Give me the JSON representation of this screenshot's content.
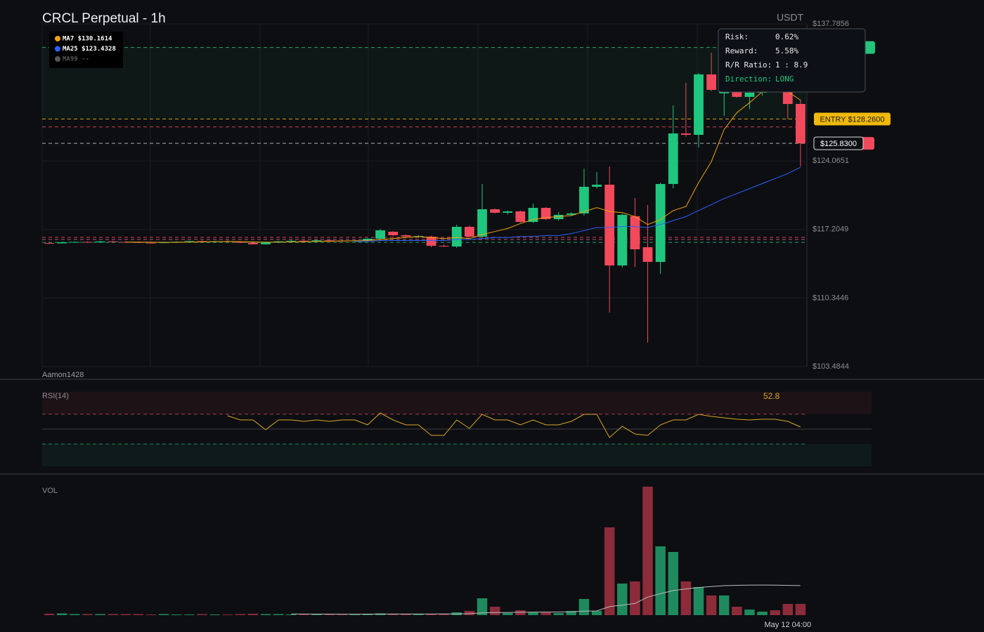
{
  "title": "CRCL Perpetual - 1h",
  "currency": "USDT",
  "watermark": "Aamon1428",
  "legend": [
    {
      "label": "MA7 $130.1614",
      "color": "#f0a30a"
    },
    {
      "label": "MA25 $123.4328",
      "color": "#2962ff"
    },
    {
      "label": "MA99 --",
      "color": "#555555"
    }
  ],
  "risk_panel": [
    {
      "label": "Risk:",
      "value": "0.62%"
    },
    {
      "label": "Reward:",
      "value": "5.58%"
    },
    {
      "label": "R/R Ratio:",
      "value": "1 : 8.9"
    },
    {
      "label": "Direction:",
      "value": "LONG"
    }
  ],
  "chart_data": [
    {
      "type": "candlestick",
      "up_color": "#1fc77e",
      "down_color": "#f2495c",
      "ylim": [
        103.4844,
        137.7856
      ],
      "yticks": [
        {
          "value": 103.4844,
          "label": "$103.4844"
        },
        {
          "value": 110.3446,
          "label": "$110.3446"
        },
        {
          "value": 117.2049,
          "label": "$117.2049"
        },
        {
          "value": 124.0651,
          "label": "$124.0651"
        },
        {
          "value": 137.7856,
          "label": "$137.7856"
        }
      ],
      "ohlc": [
        [
          115.85,
          115.95,
          115.78,
          115.8
        ],
        [
          115.82,
          115.98,
          115.8,
          115.93
        ],
        [
          115.93,
          116.0,
          115.88,
          115.96
        ],
        [
          115.96,
          116.02,
          115.9,
          115.92
        ],
        [
          115.92,
          116.05,
          115.89,
          116.01
        ],
        [
          116.01,
          116.06,
          115.93,
          115.96
        ],
        [
          115.96,
          116.02,
          115.9,
          115.94
        ],
        [
          115.94,
          115.99,
          115.86,
          115.88
        ],
        [
          115.88,
          115.95,
          115.82,
          115.85
        ],
        [
          115.85,
          115.96,
          115.83,
          115.92
        ],
        [
          115.92,
          116.01,
          115.89,
          115.98
        ],
        [
          115.98,
          116.08,
          115.95,
          116.04
        ],
        [
          116.04,
          116.1,
          115.98,
          116.0
        ],
        [
          116.0,
          116.06,
          115.94,
          116.02
        ],
        [
          116.02,
          116.12,
          115.96,
          115.97
        ],
        [
          115.97,
          116.0,
          115.85,
          115.88
        ],
        [
          115.88,
          115.92,
          115.7,
          115.72
        ],
        [
          115.72,
          115.95,
          115.7,
          115.9
        ],
        [
          115.9,
          116.06,
          115.86,
          116.02
        ],
        [
          116.02,
          116.15,
          115.98,
          116.08
        ],
        [
          116.08,
          116.12,
          115.99,
          116.03
        ],
        [
          116.03,
          116.18,
          116.0,
          116.12
        ],
        [
          116.12,
          116.2,
          116.05,
          116.09
        ],
        [
          116.09,
          116.15,
          116.01,
          116.06
        ],
        [
          116.06,
          116.14,
          115.98,
          116.1
        ],
        [
          116.1,
          116.3,
          116.05,
          116.28
        ],
        [
          116.28,
          117.26,
          116.14,
          117.12
        ],
        [
          116.98,
          117.05,
          116.55,
          116.63
        ],
        [
          116.63,
          116.7,
          116.4,
          116.5
        ],
        [
          116.5,
          116.62,
          116.38,
          116.55
        ],
        [
          116.49,
          116.6,
          115.43,
          115.57
        ],
        [
          115.57,
          115.7,
          115.45,
          115.52
        ],
        [
          115.5,
          117.68,
          115.36,
          117.47
        ],
        [
          117.47,
          117.6,
          116.4,
          116.49
        ],
        [
          116.49,
          121.76,
          116.28,
          119.23
        ],
        [
          119.23,
          119.3,
          118.8,
          118.88
        ],
        [
          118.88,
          119.1,
          118.7,
          119.02
        ],
        [
          119.02,
          119.1,
          117.9,
          117.96
        ],
        [
          117.96,
          119.79,
          117.85,
          119.37
        ],
        [
          119.37,
          119.45,
          118.15,
          118.24
        ],
        [
          118.24,
          118.95,
          118.1,
          118.67
        ],
        [
          118.67,
          118.95,
          118.55,
          118.81
        ],
        [
          118.81,
          123.31,
          118.6,
          121.48
        ],
        [
          121.48,
          122.96,
          121.3,
          121.69
        ],
        [
          121.69,
          123.52,
          108.89,
          113.6
        ],
        [
          113.6,
          118.8,
          113.4,
          118.67
        ],
        [
          118.53,
          120.35,
          113.46,
          115.22
        ],
        [
          115.43,
          119.65,
          105.87,
          113.96
        ],
        [
          113.96,
          121.9,
          112.76,
          121.76
        ],
        [
          121.76,
          129.63,
          121.34,
          126.82
        ],
        [
          126.82,
          131.88,
          126.47,
          126.68
        ],
        [
          126.68,
          132.87,
          125.41,
          132.73
        ],
        [
          132.73,
          134.9,
          131.04,
          131.18
        ],
        [
          130.83,
          132.8,
          128.58,
          132.09
        ],
        [
          131.39,
          131.6,
          130.4,
          130.48
        ],
        [
          130.48,
          131.2,
          129.28,
          130.9
        ],
        [
          130.9,
          132.2,
          130.6,
          131.74
        ],
        [
          131.74,
          132.3,
          131.2,
          131.4
        ],
        [
          131.39,
          131.8,
          128.23,
          129.77
        ],
        [
          129.77,
          130.2,
          123.52,
          125.83
        ]
      ],
      "series": [
        {
          "color": "#f0a30a",
          "values": [
            null,
            null,
            null,
            null,
            null,
            null,
            115.95,
            115.94,
            115.93,
            115.92,
            115.92,
            115.94,
            115.96,
            115.98,
            116.0,
            115.99,
            115.96,
            115.93,
            115.94,
            115.96,
            115.98,
            116.0,
            116.03,
            116.06,
            116.07,
            116.1,
            116.2,
            116.3,
            116.4,
            116.5,
            116.4,
            116.3,
            116.4,
            116.3,
            116.7,
            117.0,
            117.3,
            117.8,
            118.2,
            118.4,
            118.5,
            118.6,
            119.0,
            119.4,
            119.0,
            118.9,
            118.5,
            117.7,
            118.2,
            119.1,
            119.5,
            121.9,
            124.0,
            127.2,
            128.9,
            129.9,
            131.0,
            131.3,
            131.0,
            130.16
          ]
        },
        {
          "color": "#2962ff",
          "values": [
            null,
            null,
            null,
            null,
            null,
            null,
            null,
            null,
            null,
            null,
            null,
            null,
            null,
            null,
            null,
            null,
            null,
            null,
            null,
            null,
            null,
            null,
            null,
            null,
            116.0,
            116.0,
            116.1,
            116.1,
            116.1,
            116.1,
            116.1,
            116.1,
            116.2,
            116.2,
            116.3,
            116.4,
            116.4,
            116.5,
            116.5,
            116.6,
            116.6,
            116.8,
            117.1,
            117.4,
            117.4,
            117.5,
            117.5,
            117.4,
            117.7,
            118.1,
            118.5,
            119.1,
            119.7,
            120.3,
            120.8,
            121.3,
            121.8,
            122.3,
            122.8,
            123.43
          ]
        }
      ],
      "levels": [
        {
          "value": 135.42,
          "color": "#22c47a"
        },
        {
          "value": 128.26,
          "color": "#f0b90b",
          "label": "ENTRY $128.2600"
        },
        {
          "value": 127.47,
          "color": "#f2495c"
        },
        {
          "value": 125.83,
          "color": "#cccccc",
          "label": "$125.8300"
        },
        {
          "value": 116.42,
          "color": "#f2495c"
        },
        {
          "value": 116.21,
          "color": "#e05c8a"
        },
        {
          "value": 115.92,
          "color": "#22c47a"
        }
      ]
    },
    {
      "type": "line",
      "title": "RSI(14)",
      "color": "#d9a425",
      "ylim": [
        0,
        100
      ],
      "levels": [
        70,
        50,
        30
      ],
      "current": 52.8,
      "values": [
        null,
        null,
        null,
        null,
        null,
        null,
        null,
        null,
        null,
        null,
        null,
        null,
        null,
        null,
        67.9,
        62.3,
        62.3,
        49.1,
        62.3,
        62.3,
        60.4,
        62.3,
        60.4,
        62.3,
        62.3,
        55.7,
        71.7,
        62.3,
        55.7,
        55.7,
        41.5,
        41.5,
        62.3,
        50.9,
        69.8,
        62.3,
        62.3,
        55.7,
        62.3,
        55.7,
        55.7,
        60.4,
        69.8,
        69.8,
        38.7,
        53.8,
        43.4,
        41.5,
        55.7,
        62.3,
        62.3,
        69.8,
        67.0,
        65.1,
        63.2,
        62.3,
        63.2,
        63.2,
        60.4,
        52.8
      ]
    },
    {
      "type": "bar",
      "title": "VOL",
      "up_color": "#1f8a5d",
      "down_color": "#8c2c3a",
      "ma_color": "#bbbbbb",
      "ylim": [
        0,
        200
      ],
      "categories": [
        null,
        null,
        null,
        null,
        null,
        null,
        null,
        null,
        null,
        null,
        null,
        null,
        null,
        null,
        null,
        null,
        null,
        null,
        null,
        null,
        null,
        null,
        null,
        null,
        null,
        null,
        null,
        null,
        null,
        null,
        null,
        null,
        null,
        null,
        null,
        null,
        null,
        null,
        null,
        null,
        null,
        null,
        null,
        null,
        null,
        null,
        null,
        null,
        null,
        null,
        null,
        null,
        null,
        null,
        null,
        null,
        null,
        null,
        "May 12 04:00",
        null
      ],
      "values": [
        2,
        2.5,
        1.5,
        1.5,
        1.5,
        1.5,
        1.5,
        1.5,
        1,
        1.5,
        1,
        1,
        1.5,
        1,
        1,
        1.5,
        2,
        1.5,
        1.5,
        1,
        1,
        1,
        1,
        1,
        1,
        2,
        2.5,
        2,
        1.5,
        1.5,
        2,
        1.5,
        4,
        6,
        24,
        12,
        3,
        7,
        4,
        4,
        3,
        6,
        23,
        6,
        125,
        45,
        48,
        183,
        98,
        90,
        48,
        40,
        28,
        28,
        12,
        8,
        5,
        7,
        16,
        16
      ],
      "ma": [
        null,
        null,
        null,
        null,
        null,
        null,
        null,
        null,
        null,
        null,
        null,
        null,
        null,
        null,
        null,
        null,
        null,
        null,
        null,
        1.6,
        1.6,
        1.5,
        1.5,
        1.4,
        1.4,
        1.5,
        1.5,
        1.6,
        1.6,
        1.6,
        1.6,
        1.7,
        1.8,
        2.1,
        3.2,
        3.7,
        3.8,
        4.1,
        4.3,
        4.4,
        4.5,
        4.7,
        5.8,
        6.0,
        12.1,
        14.3,
        16.6,
        25.7,
        30.6,
        35.0,
        37.4,
        39.4,
        40.7,
        42.0,
        42.5,
        42.8,
        42.9,
        42.8,
        42.4,
        42.1
      ]
    }
  ]
}
